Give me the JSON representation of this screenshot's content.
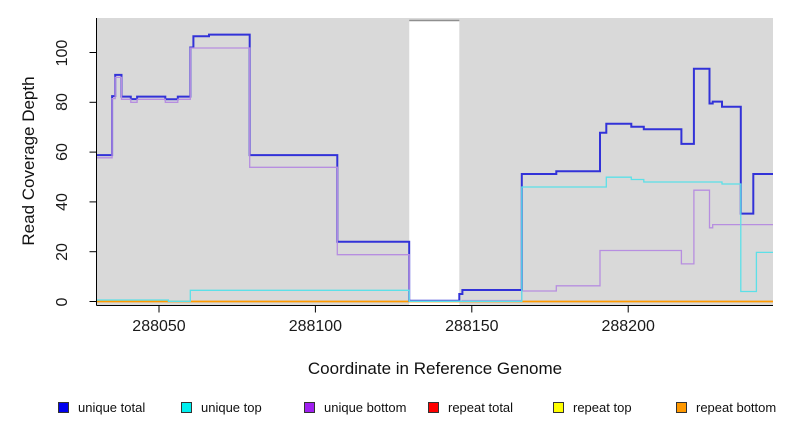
{
  "axes": {
    "x": {
      "label": "Coordinate in Reference Genome",
      "tick_values": [
        288050,
        288100,
        288150,
        288200
      ]
    },
    "y": {
      "label": "Read Coverage Depth",
      "tick_values": [
        0,
        20,
        40,
        60,
        80,
        100
      ]
    }
  },
  "legend": [
    {
      "label": "unique total",
      "color": "#0000ee"
    },
    {
      "label": "unique top",
      "color": "#00eeee"
    },
    {
      "label": "unique bottom",
      "color": "#a020f0"
    },
    {
      "label": "repeat total",
      "color": "#ff0000"
    },
    {
      "label": "repeat top",
      "color": "#ffff00"
    },
    {
      "label": "repeat bottom",
      "color": "#ff9800"
    }
  ],
  "chart_data": {
    "type": "line",
    "step": true,
    "title": "",
    "xlabel": "Coordinate in Reference Genome",
    "ylabel": "Read Coverage Depth",
    "xlim": [
      288030,
      288246.5
    ],
    "ylim": [
      0,
      113
    ],
    "x_ticks": [
      288050,
      288100,
      288150,
      288200
    ],
    "y_ticks": [
      0,
      20,
      40,
      60,
      80,
      100
    ],
    "grid": false,
    "legend_position": "bottom",
    "plot_background": "#d9d9d9",
    "no_data_region": {
      "x_start": 288130,
      "x_end": 288146,
      "border_color": "#8f8f8f"
    },
    "series": [
      {
        "name": "repeat total",
        "line_color": "#dd0000",
        "width": 1.2,
        "points": [
          [
            288030,
            0
          ]
        ]
      },
      {
        "name": "repeat top",
        "line_color": "#eeee00",
        "width": 1.2,
        "points": [
          [
            288030,
            0
          ]
        ]
      },
      {
        "name": "repeat bottom",
        "line_color": "#ff9b00",
        "width": 1.6,
        "points": [
          [
            288030,
            0
          ]
        ]
      },
      {
        "name": "unique total",
        "line_color": "#3232d8",
        "width": 2,
        "points": [
          [
            288030,
            58.8
          ],
          [
            288035,
            82.5
          ],
          [
            288036,
            91
          ],
          [
            288038,
            82.3
          ],
          [
            288041,
            81.3
          ],
          [
            288043,
            82.3
          ],
          [
            288052,
            81.2
          ],
          [
            288056,
            82.3
          ],
          [
            288060,
            102
          ],
          [
            288061,
            106.5
          ],
          [
            288066,
            107.2
          ],
          [
            288079,
            58.8
          ],
          [
            288107,
            24
          ],
          [
            288130,
            0.3
          ],
          [
            288146,
            3
          ],
          [
            288147,
            4.6
          ],
          [
            288166,
            51.2
          ],
          [
            288177,
            52.3
          ],
          [
            288191,
            67.8
          ],
          [
            288193,
            71.4
          ],
          [
            288201,
            70.2
          ],
          [
            288205,
            69.2
          ],
          [
            288217,
            63.3
          ],
          [
            288221,
            93.5
          ],
          [
            288226,
            79.5
          ],
          [
            288227,
            80.3
          ],
          [
            288230,
            78.2
          ],
          [
            288236,
            35.3
          ],
          [
            288240,
            51.2
          ]
        ]
      },
      {
        "name": "unique bottom",
        "line_color": "#b78ee0",
        "width": 1.3,
        "points": [
          [
            288030,
            57.7
          ],
          [
            288035,
            81.5
          ],
          [
            288036,
            90
          ],
          [
            288038,
            81.2
          ],
          [
            288041,
            80
          ],
          [
            288043,
            81.2
          ],
          [
            288052,
            80
          ],
          [
            288056,
            81.2
          ],
          [
            288060,
            101.8
          ],
          [
            288079,
            53.9
          ],
          [
            288107,
            18.8
          ],
          [
            288130,
            0.2
          ],
          [
            288147,
            0.4
          ],
          [
            288166,
            4.2
          ],
          [
            288177,
            6.3
          ],
          [
            288191,
            20.5
          ],
          [
            288217,
            15.1
          ],
          [
            288221,
            44.7
          ],
          [
            288226,
            29.6
          ],
          [
            288227,
            30.9
          ]
        ]
      },
      {
        "name": "unique top",
        "line_color": "#5ce0e8",
        "width": 1.3,
        "points": [
          [
            288030,
            0.6
          ],
          [
            288053,
            0.1
          ],
          [
            288060,
            4.5
          ],
          [
            288130,
            0.1
          ],
          [
            288166,
            46
          ],
          [
            288193,
            49.9
          ],
          [
            288201,
            49
          ],
          [
            288205,
            48
          ],
          [
            288230,
            47.2
          ],
          [
            288236,
            4
          ],
          [
            288241,
            19.7
          ]
        ]
      }
    ]
  }
}
